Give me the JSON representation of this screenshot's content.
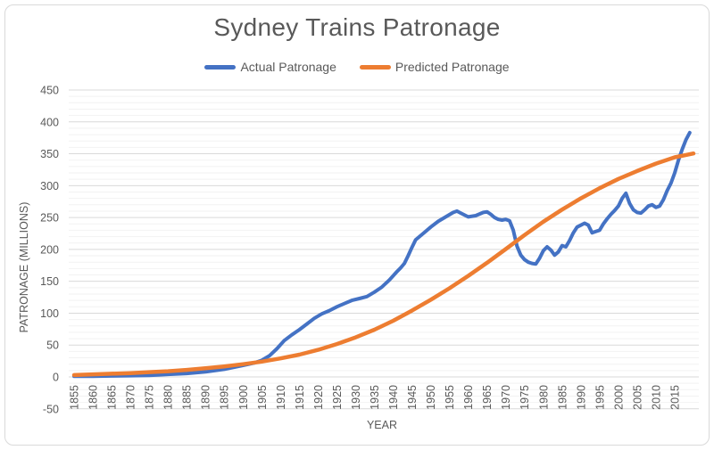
{
  "chart_data": {
    "type": "line",
    "title": "Sydney Trains Patronage",
    "xlabel": "YEAR",
    "ylabel": "PATRONAGE (MILLIONS)",
    "legend_position": "top",
    "grid": "horizontal-major-and-minor",
    "background_color": "#ffffff",
    "major_grid_color": "#d9d9d9",
    "minor_grid_color": "#f2f2f2",
    "text_color": "#595959",
    "ylim": [
      -50,
      450
    ],
    "y_major_step": 50,
    "y_minor_step": 10,
    "x_ticks": [
      1855,
      1860,
      1865,
      1870,
      1875,
      1880,
      1885,
      1890,
      1895,
      1900,
      1905,
      1910,
      1915,
      1920,
      1925,
      1930,
      1935,
      1940,
      1945,
      1950,
      1955,
      1960,
      1965,
      1970,
      1975,
      1980,
      1985,
      1990,
      1995,
      2000,
      2005,
      2010,
      2015
    ],
    "series": [
      {
        "name": "Actual Patronage",
        "color": "#4472C4",
        "stroke_width": 4,
        "points": [
          [
            1855,
            1
          ],
          [
            1860,
            1
          ],
          [
            1865,
            1.5
          ],
          [
            1870,
            2
          ],
          [
            1875,
            2.5
          ],
          [
            1880,
            4
          ],
          [
            1885,
            5.5
          ],
          [
            1890,
            8
          ],
          [
            1895,
            12
          ],
          [
            1900,
            18
          ],
          [
            1903,
            22
          ],
          [
            1905,
            26
          ],
          [
            1907,
            33
          ],
          [
            1909,
            44
          ],
          [
            1911,
            57
          ],
          [
            1913,
            66
          ],
          [
            1915,
            74
          ],
          [
            1917,
            83
          ],
          [
            1919,
            92
          ],
          [
            1921,
            99
          ],
          [
            1923,
            104
          ],
          [
            1925,
            110
          ],
          [
            1927,
            115
          ],
          [
            1929,
            120
          ],
          [
            1931,
            123
          ],
          [
            1933,
            126
          ],
          [
            1935,
            133
          ],
          [
            1937,
            141
          ],
          [
            1939,
            152
          ],
          [
            1941,
            165
          ],
          [
            1942,
            171
          ],
          [
            1943,
            178
          ],
          [
            1944,
            190
          ],
          [
            1945,
            203
          ],
          [
            1946,
            215
          ],
          [
            1948,
            225
          ],
          [
            1950,
            235
          ],
          [
            1952,
            244
          ],
          [
            1954,
            251
          ],
          [
            1956,
            258
          ],
          [
            1957,
            260
          ],
          [
            1958,
            257
          ],
          [
            1960,
            251
          ],
          [
            1962,
            253
          ],
          [
            1964,
            258
          ],
          [
            1965,
            259
          ],
          [
            1966,
            255
          ],
          [
            1967,
            250
          ],
          [
            1968,
            247
          ],
          [
            1969,
            246
          ],
          [
            1970,
            247
          ],
          [
            1971,
            245
          ],
          [
            1972,
            230
          ],
          [
            1973,
            205
          ],
          [
            1974,
            191
          ],
          [
            1975,
            184
          ],
          [
            1976,
            180
          ],
          [
            1977,
            178
          ],
          [
            1978,
            177
          ],
          [
            1979,
            186
          ],
          [
            1980,
            198
          ],
          [
            1981,
            204
          ],
          [
            1982,
            199
          ],
          [
            1983,
            191
          ],
          [
            1984,
            196
          ],
          [
            1985,
            206
          ],
          [
            1986,
            204
          ],
          [
            1987,
            214
          ],
          [
            1988,
            226
          ],
          [
            1989,
            235
          ],
          [
            1990,
            238
          ],
          [
            1991,
            241
          ],
          [
            1992,
            238
          ],
          [
            1993,
            226
          ],
          [
            1994,
            228
          ],
          [
            1995,
            230
          ],
          [
            1996,
            240
          ],
          [
            1997,
            248
          ],
          [
            1998,
            255
          ],
          [
            1999,
            261
          ],
          [
            2000,
            268
          ],
          [
            2001,
            280
          ],
          [
            2002,
            288
          ],
          [
            2003,
            272
          ],
          [
            2004,
            262
          ],
          [
            2005,
            258
          ],
          [
            2006,
            257
          ],
          [
            2007,
            262
          ],
          [
            2008,
            268
          ],
          [
            2009,
            270
          ],
          [
            2010,
            266
          ],
          [
            2011,
            268
          ],
          [
            2012,
            278
          ],
          [
            2013,
            292
          ],
          [
            2014,
            304
          ],
          [
            2015,
            320
          ],
          [
            2016,
            340
          ],
          [
            2017,
            357
          ],
          [
            2018,
            372
          ],
          [
            2019,
            383
          ]
        ]
      },
      {
        "name": "Predicted Patronage",
        "color": "#ED7D31",
        "stroke_width": 4.5,
        "points": [
          [
            1855,
            3
          ],
          [
            1860,
            4
          ],
          [
            1865,
            5
          ],
          [
            1870,
            6
          ],
          [
            1875,
            7.5
          ],
          [
            1880,
            9
          ],
          [
            1885,
            11
          ],
          [
            1890,
            13.5
          ],
          [
            1895,
            16.5
          ],
          [
            1900,
            20
          ],
          [
            1905,
            24
          ],
          [
            1910,
            29
          ],
          [
            1915,
            35
          ],
          [
            1920,
            42.5
          ],
          [
            1925,
            51.5
          ],
          [
            1930,
            62
          ],
          [
            1935,
            74
          ],
          [
            1940,
            88
          ],
          [
            1945,
            104
          ],
          [
            1950,
            121
          ],
          [
            1955,
            139
          ],
          [
            1960,
            158.5
          ],
          [
            1965,
            179
          ],
          [
            1970,
            200.5
          ],
          [
            1975,
            222.5
          ],
          [
            1980,
            243.5
          ],
          [
            1985,
            262.5
          ],
          [
            1990,
            280
          ],
          [
            1995,
            296
          ],
          [
            2000,
            310.5
          ],
          [
            2005,
            323
          ],
          [
            2010,
            334.5
          ],
          [
            2015,
            344.5
          ],
          [
            2020,
            350.5
          ]
        ]
      }
    ]
  }
}
